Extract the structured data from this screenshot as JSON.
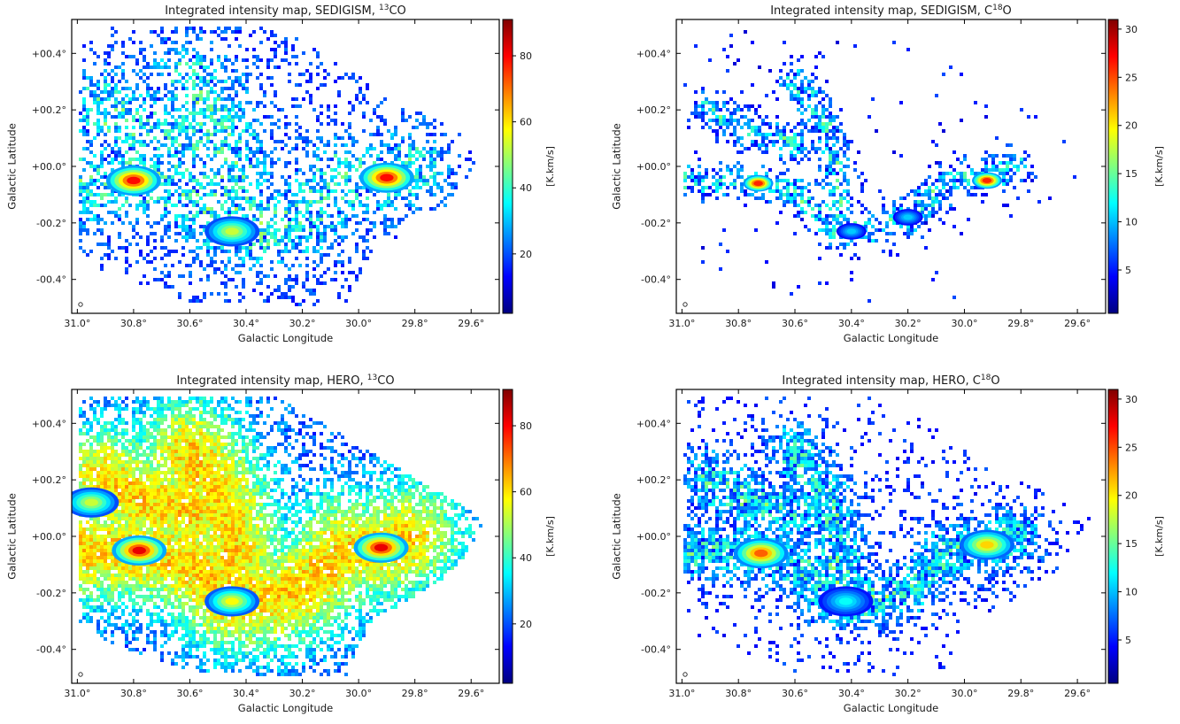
{
  "figure": {
    "colormap": "jet",
    "colormap_stops": [
      "#000080",
      "#0000ff",
      "#0080ff",
      "#00ffff",
      "#80ff80",
      "#ffff00",
      "#ff8000",
      "#ff0000",
      "#800000"
    ]
  },
  "chart_data": [
    {
      "type": "heatmap",
      "title": "Integrated intensity map, SEDIGISM, ",
      "title_molecule": {
        "pre": "",
        "sup": "13",
        "post": "CO"
      },
      "xlabel": "Galactic Longitude",
      "ylabel": "Galactic Latitude",
      "colorbar_label": "[K.km/s]",
      "x_ticks": [
        "31.0°",
        "30.8°",
        "30.6°",
        "30.4°",
        "30.2°",
        "30.0°",
        "29.8°",
        "29.6°"
      ],
      "y_ticks": [
        "+00.4°",
        "+00.2°",
        "+00.0°",
        "-00.2°",
        "-00.4°"
      ],
      "xlim": [
        31.02,
        29.5
      ],
      "ylim": [
        -0.52,
        0.52
      ],
      "colorbar_ticks": [
        20,
        40,
        60,
        80
      ],
      "colorbar_range": [
        2,
        91
      ],
      "coverage": "sparse",
      "emission_peaks": [
        {
          "l": 30.8,
          "b": -0.05,
          "value": 85
        },
        {
          "l": 29.9,
          "b": -0.04,
          "value": 85
        },
        {
          "l": 30.45,
          "b": -0.23,
          "value": 55
        }
      ]
    },
    {
      "type": "heatmap",
      "title": "Integrated intensity map, SEDIGISM, ",
      "title_molecule": {
        "pre": "C",
        "sup": "18",
        "post": "O"
      },
      "xlabel": "Galactic Longitude",
      "ylabel": "Galactic Latitude",
      "colorbar_label": "[K.km/s]",
      "x_ticks": [
        "31.0°",
        "30.8°",
        "30.6°",
        "30.4°",
        "30.2°",
        "30.0°",
        "29.8°",
        "29.6°"
      ],
      "y_ticks": [
        "+00.4°",
        "+00.2°",
        "+00.0°",
        "-00.2°",
        "-00.4°"
      ],
      "xlim": [
        31.02,
        29.5
      ],
      "ylim": [
        -0.52,
        0.52
      ],
      "colorbar_ticks": [
        5,
        10,
        15,
        20,
        25,
        30
      ],
      "colorbar_range": [
        0.5,
        31
      ],
      "coverage": "very-sparse",
      "emission_peaks": [
        {
          "l": 30.73,
          "b": -0.06,
          "value": 28
        },
        {
          "l": 29.92,
          "b": -0.05,
          "value": 28
        },
        {
          "l": 30.4,
          "b": -0.23,
          "value": 10
        },
        {
          "l": 30.2,
          "b": -0.18,
          "value": 10
        }
      ]
    },
    {
      "type": "heatmap",
      "title": "Integrated intensity map, HERO, ",
      "title_molecule": {
        "pre": "",
        "sup": "13",
        "post": "CO"
      },
      "xlabel": "Galactic Longitude",
      "ylabel": "Galactic Latitude",
      "colorbar_label": "[K.km/s]",
      "x_ticks": [
        "31.0°",
        "30.8°",
        "30.6°",
        "30.4°",
        "30.2°",
        "30.0°",
        "29.8°",
        "29.6°"
      ],
      "y_ticks": [
        "+00.4°",
        "+00.2°",
        "+00.0°",
        "-00.2°",
        "-00.4°"
      ],
      "xlim": [
        31.02,
        29.5
      ],
      "ylim": [
        -0.52,
        0.52
      ],
      "colorbar_ticks": [
        20,
        40,
        60,
        80
      ],
      "colorbar_range": [
        2,
        91
      ],
      "coverage": "dense",
      "emission_peaks": [
        {
          "l": 30.78,
          "b": -0.05,
          "value": 88
        },
        {
          "l": 29.92,
          "b": -0.04,
          "value": 88
        },
        {
          "l": 30.45,
          "b": -0.23,
          "value": 60
        },
        {
          "l": 30.95,
          "b": 0.12,
          "value": 55
        }
      ]
    },
    {
      "type": "heatmap",
      "title": "Integrated intensity map, HERO, ",
      "title_molecule": {
        "pre": "C",
        "sup": "18",
        "post": "O"
      },
      "xlabel": "Galactic Longitude",
      "ylabel": "Galactic Latitude",
      "colorbar_label": "[K.km/s]",
      "x_ticks": [
        "31.0°",
        "30.8°",
        "30.6°",
        "30.4°",
        "30.2°",
        "30.0°",
        "29.8°",
        "29.6°"
      ],
      "y_ticks": [
        "+00.4°",
        "+00.2°",
        "+00.0°",
        "-00.2°",
        "-00.4°"
      ],
      "xlim": [
        31.02,
        29.5
      ],
      "ylim": [
        -0.52,
        0.52
      ],
      "colorbar_ticks": [
        5,
        10,
        15,
        20,
        25,
        30
      ],
      "colorbar_range": [
        0.5,
        31
      ],
      "coverage": "moderate",
      "emission_peaks": [
        {
          "l": 30.72,
          "b": -0.06,
          "value": 26
        },
        {
          "l": 29.92,
          "b": -0.03,
          "value": 22
        },
        {
          "l": 30.42,
          "b": -0.23,
          "value": 12
        }
      ]
    }
  ]
}
